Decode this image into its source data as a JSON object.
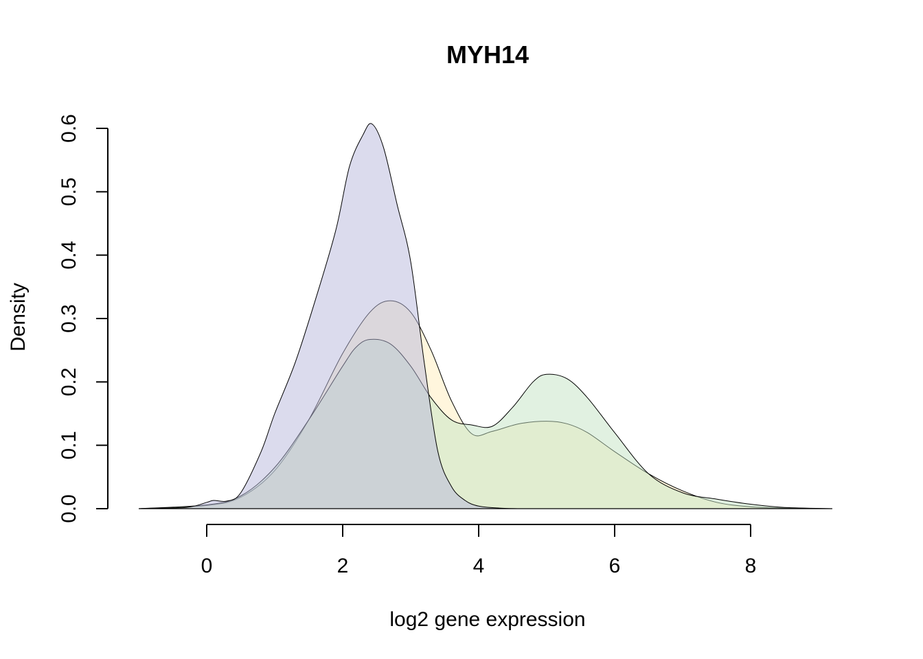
{
  "chart_data": {
    "type": "area",
    "title": "MYH14",
    "xlabel": "log2 gene expression",
    "ylabel": "Density",
    "xlim": [
      -1.0,
      9.2
    ],
    "ylim": [
      0,
      0.6
    ],
    "x_ticks": [
      "0",
      "2",
      "4",
      "6",
      "8"
    ],
    "y_ticks": [
      "0.0",
      "0.1",
      "0.2",
      "0.3",
      "0.4",
      "0.5",
      "0.6"
    ],
    "grid": false,
    "legend": "none",
    "series": [
      {
        "color": "#ffeebb",
        "x": [
          -1.0,
          0.0,
          0.5,
          1.0,
          1.5,
          2.0,
          2.4,
          2.7,
          3.0,
          3.3,
          3.6,
          3.9,
          4.2,
          4.6,
          5.0,
          5.3,
          5.6,
          6.0,
          6.5,
          7.0,
          7.5,
          8.0,
          8.5,
          9.2
        ],
        "y": [
          0.0,
          0.005,
          0.018,
          0.06,
          0.14,
          0.245,
          0.31,
          0.328,
          0.31,
          0.25,
          0.17,
          0.118,
          0.122,
          0.134,
          0.138,
          0.134,
          0.12,
          0.09,
          0.055,
          0.028,
          0.01,
          0.003,
          0.001,
          0.0
        ]
      },
      {
        "color": "#c4e3c4",
        "x": [
          -1.0,
          0.0,
          0.5,
          1.0,
          1.5,
          2.0,
          2.2,
          2.4,
          2.7,
          3.0,
          3.3,
          3.6,
          3.9,
          4.2,
          4.5,
          4.8,
          5.0,
          5.3,
          5.6,
          6.0,
          6.5,
          7.0,
          7.5,
          8.0,
          8.5,
          9.2
        ],
        "y": [
          0.0,
          0.006,
          0.02,
          0.065,
          0.14,
          0.225,
          0.255,
          0.267,
          0.26,
          0.225,
          0.175,
          0.14,
          0.132,
          0.13,
          0.16,
          0.2,
          0.212,
          0.205,
          0.175,
          0.12,
          0.055,
          0.025,
          0.015,
          0.007,
          0.002,
          0.0
        ]
      },
      {
        "color": "#b8b8dc",
        "x": [
          -1.0,
          -0.3,
          0.0,
          0.1,
          0.3,
          0.5,
          0.8,
          1.0,
          1.3,
          1.6,
          1.9,
          2.1,
          2.3,
          2.43,
          2.6,
          2.8,
          3.0,
          3.2,
          3.4,
          3.6,
          3.8,
          4.0,
          4.3,
          4.6,
          5.0
        ],
        "y": [
          0.0,
          0.002,
          0.01,
          0.013,
          0.012,
          0.025,
          0.09,
          0.15,
          0.23,
          0.33,
          0.44,
          0.54,
          0.59,
          0.607,
          0.57,
          0.48,
          0.39,
          0.23,
          0.09,
          0.035,
          0.013,
          0.004,
          0.001,
          0.0,
          0.0
        ]
      }
    ]
  }
}
